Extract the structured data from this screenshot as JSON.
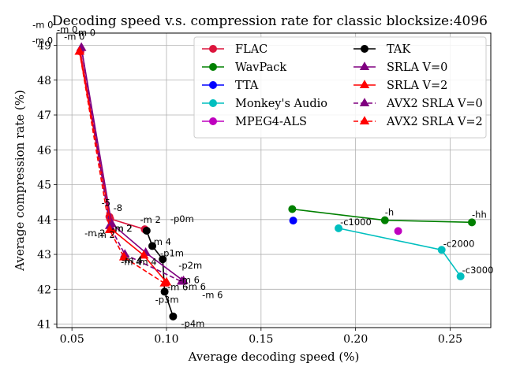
{
  "chart_data": {
    "type": "line",
    "title": "Decoding speed v.s. compression rate for classic blocksize:4096",
    "xlabel": "Average decoding speed (%)",
    "ylabel": "Average compression rate (%)",
    "xlim": [
      0.042,
      0.2715
    ],
    "ylim": [
      40.9,
      49.35
    ],
    "xticks": [
      0.05,
      0.1,
      0.15,
      0.2,
      0.25
    ],
    "xtick_labels": [
      "0.05",
      "0.10",
      "0.15",
      "0.20",
      "0.25"
    ],
    "yticks": [
      41,
      42,
      43,
      44,
      45,
      46,
      47,
      48,
      49
    ],
    "ytick_labels": [
      "41",
      "42",
      "43",
      "44",
      "45",
      "46",
      "47",
      "48",
      "49"
    ],
    "grid": true,
    "legend_position": "top-right",
    "series": [
      {
        "name": "FLAC",
        "color": "#dc143c",
        "marker": "circle",
        "dash": false,
        "x": [
          0.0545,
          0.0698,
          0.0702,
          0.0885
        ],
        "y": [
          48.82,
          44.08,
          44.02,
          43.72
        ],
        "labels": [
          "-m 0",
          "-5",
          "-8",
          "-m 2"
        ]
      },
      {
        "name": "WavPack",
        "color": "#008000",
        "marker": "circle",
        "dash": false,
        "x": [
          0.1665,
          0.2155,
          0.2615
        ],
        "y": [
          44.3,
          43.98,
          43.92
        ],
        "labels": [
          "",
          "-h",
          "-hh"
        ]
      },
      {
        "name": "TTA",
        "color": "#0000ff",
        "marker": "circle",
        "dash": false,
        "x": [
          0.167
        ],
        "y": [
          43.97
        ],
        "labels": [
          ""
        ]
      },
      {
        "name": "Monkey's Audio",
        "color": "#00bfbf",
        "marker": "circle",
        "dash": false,
        "x": [
          0.191,
          0.2455,
          0.2555
        ],
        "y": [
          43.75,
          43.13,
          42.37
        ],
        "labels": [
          "-c1000",
          "-c2000",
          "-c3000"
        ]
      },
      {
        "name": "MPEG4-ALS",
        "color": "#bf00bf",
        "marker": "circle",
        "dash": false,
        "x": [
          0.2225
        ],
        "y": [
          43.67
        ],
        "labels": [
          ""
        ]
      },
      {
        "name": "TAK",
        "color": "#000000",
        "marker": "circle",
        "dash": false,
        "x": [
          0.0895,
          0.0925,
          0.098,
          0.099,
          0.1035
        ],
        "y": [
          43.68,
          43.24,
          42.86,
          41.93,
          41.22
        ],
        "labels": [
          "-p0m",
          "-p1m",
          "-p2m",
          "-p3m",
          "-p4m"
        ]
      },
      {
        "name": "SRLA V=0",
        "color": "#800080",
        "marker": "triangle",
        "dash": false,
        "x": [
          0.055,
          0.071,
          0.089,
          0.109
        ],
        "y": [
          48.93,
          43.88,
          43.05,
          42.24
        ],
        "labels": [
          "-m 0",
          "-m 2",
          "-m 4",
          "-m 6"
        ]
      },
      {
        "name": "SRLA V=2",
        "color": "#ff0000",
        "marker": "triangle",
        "dash": false,
        "x": [
          0.054,
          0.071,
          0.088,
          0.1
        ],
        "y": [
          48.82,
          43.72,
          42.97,
          42.2
        ],
        "labels": [
          "-m 0",
          "-m 2",
          "-m 4",
          "-m 6"
        ]
      },
      {
        "name": "AVX2 SRLA V=0",
        "color": "#800080",
        "marker": "triangle",
        "dash": true,
        "x": [
          0.055,
          0.07,
          0.078,
          0.108
        ],
        "y": [
          48.93,
          43.82,
          43.0,
          42.22
        ],
        "labels": [
          "-m 0",
          "-m 2",
          "-m 4",
          "-m 6"
        ]
      },
      {
        "name": "AVX2 SRLA V=2",
        "color": "#ff0000",
        "marker": "triangle",
        "dash": true,
        "x": [
          0.054,
          0.07,
          0.0775,
          0.099
        ],
        "y": [
          48.82,
          43.7,
          42.92,
          42.17
        ],
        "labels": [
          "-m 0",
          "-m 2",
          "-m 4",
          "-m 6"
        ]
      }
    ]
  }
}
